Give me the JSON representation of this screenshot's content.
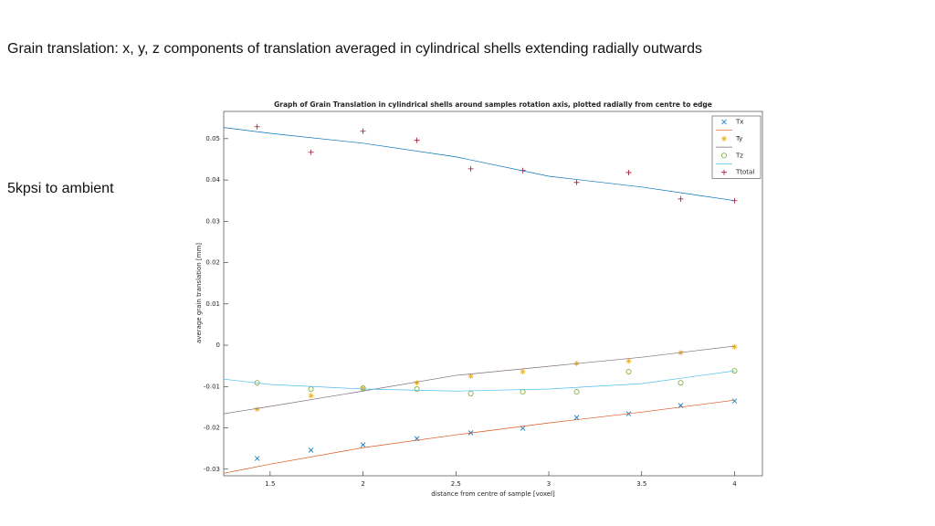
{
  "slide": {
    "heading": "Grain translation: x, y, z components of translation averaged in cylindrical shells extending radially outwards",
    "note": "5kpsi to ambient"
  },
  "chart_data": {
    "type": "scatter",
    "title": "Graph of Grain Translation in cylindrical shells around  samples rotation axis, plotted radially from centre to edge",
    "xlabel": "distance from centre of sample [voxel]",
    "ylabel": "average grain translation [mm]",
    "xlim": [
      1.25,
      4.15
    ],
    "ylim": [
      -0.0316,
      0.0566
    ],
    "xticks": [
      1.5,
      2,
      2.5,
      3,
      3.5,
      4
    ],
    "yticks": [
      -0.03,
      -0.02,
      -0.01,
      0,
      0.01,
      0.02,
      0.03,
      0.04,
      0.05
    ],
    "legend": "upper right",
    "grid": false,
    "series": [
      {
        "name": "Tx",
        "style": "markers",
        "marker": "x",
        "color": "#0072bd",
        "x": [
          1.43,
          1.72,
          2.0,
          2.29,
          2.58,
          2.86,
          3.15,
          3.43,
          3.71,
          4.0
        ],
        "values": [
          -0.0274,
          -0.0254,
          -0.0241,
          -0.0226,
          -0.0212,
          -0.0201,
          -0.0175,
          -0.0166,
          -0.0146,
          -0.0135
        ]
      },
      {
        "style": "line",
        "color": "#d95319",
        "x": [
          1.25,
          1.5,
          2,
          2.5,
          3,
          3.5,
          4
        ],
        "values": [
          -0.031,
          -0.0288,
          -0.0248,
          -0.0217,
          -0.0188,
          -0.0162,
          -0.0133
        ]
      },
      {
        "name": "Ty",
        "style": "markers",
        "marker": "*",
        "color": "#edb120",
        "x": [
          1.43,
          1.72,
          2.0,
          2.29,
          2.58,
          2.86,
          3.15,
          3.43,
          3.71,
          4.0
        ],
        "values": [
          -0.0155,
          -0.0122,
          -0.0104,
          -0.0091,
          -0.0075,
          -0.0064,
          -0.0044,
          -0.0038,
          -0.0018,
          -0.0004
        ]
      },
      {
        "style": "line",
        "color": "#7e6a7e",
        "x": [
          1.25,
          1.5,
          2,
          2.5,
          3,
          3.5,
          4
        ],
        "values": [
          -0.0166,
          -0.0148,
          -0.0111,
          -0.0073,
          -0.0051,
          -0.0029,
          -0.0002
        ]
      },
      {
        "name": "Tz",
        "style": "markers",
        "marker": "o",
        "color": "#77ac30",
        "x": [
          1.43,
          1.72,
          2.0,
          2.29,
          2.58,
          2.86,
          3.15,
          3.43,
          3.71,
          4.0
        ],
        "values": [
          -0.0091,
          -0.0106,
          -0.0104,
          -0.0106,
          -0.0117,
          -0.0113,
          -0.0113,
          -0.0064,
          -0.0091,
          -0.0062
        ]
      },
      {
        "style": "line",
        "color": "#4dbeee",
        "x": [
          1.25,
          1.5,
          2,
          2.5,
          3,
          3.5,
          4
        ],
        "values": [
          -0.0082,
          -0.0095,
          -0.0106,
          -0.0111,
          -0.0106,
          -0.0093,
          -0.0062
        ]
      },
      {
        "name": "Ttotal",
        "style": "markers",
        "marker": "+",
        "color": "#a2142f",
        "x": [
          1.43,
          1.72,
          2.0,
          2.29,
          2.58,
          2.86,
          3.15,
          3.43,
          3.71,
          4.0
        ],
        "values": [
          0.0529,
          0.0467,
          0.0518,
          0.0496,
          0.0427,
          0.0423,
          0.0394,
          0.0418,
          0.0354,
          0.035
        ]
      },
      {
        "style": "line",
        "color": "#0072bd",
        "in_legend": false,
        "x": [
          1.25,
          1.5,
          2,
          2.5,
          3,
          3.5,
          4
        ],
        "values": [
          0.0527,
          0.0513,
          0.0489,
          0.0456,
          0.0409,
          0.0383,
          0.035
        ]
      }
    ]
  }
}
